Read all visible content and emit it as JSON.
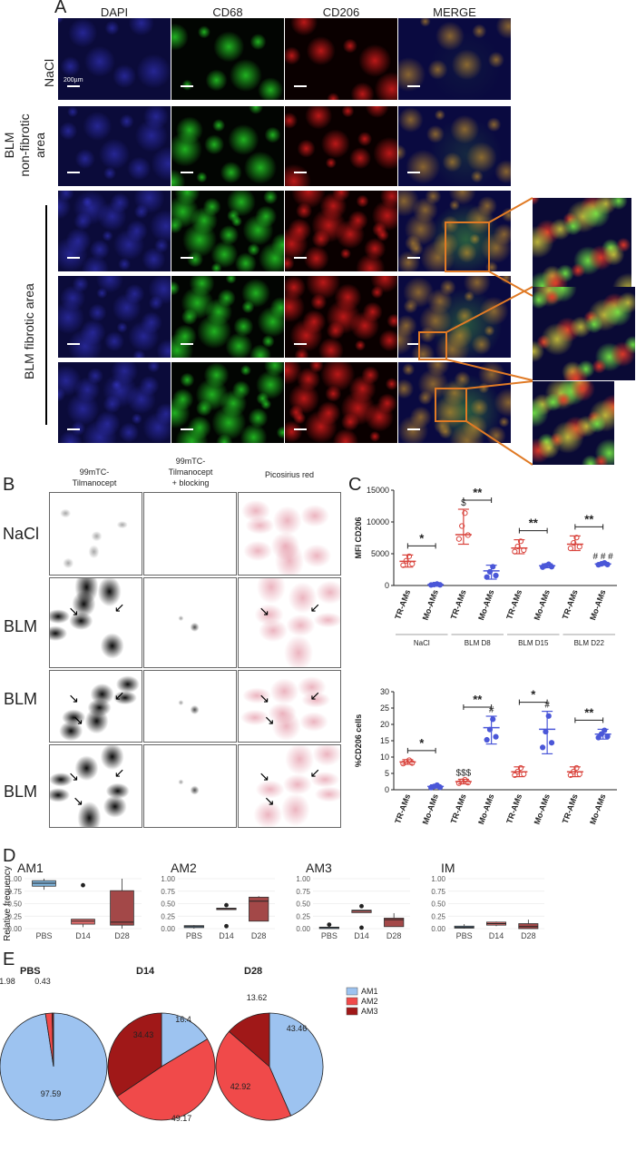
{
  "panelA": {
    "label": "A",
    "columns": [
      "DAPI",
      "CD68",
      "CD206",
      "MERGE"
    ],
    "rows": [
      "NaCl",
      "BLM\nnon-fibrotic\narea",
      "BLM fibrotic area"
    ],
    "scale_label": "200µm"
  },
  "panelB": {
    "label": "B",
    "columns": [
      "99mTC-\nTilmanocept",
      "99mTC-\nTilmanocept\n+ blocking",
      "Picosirius red"
    ],
    "rows": [
      "NaCl",
      "BLM",
      "BLM",
      "BLM"
    ]
  },
  "panelC": {
    "label": "C",
    "chart_data": [
      {
        "type": "scatter",
        "ylabel": "MFI CD206",
        "ylim": [
          0,
          15000
        ],
        "yticks": [
          "0",
          "5000",
          "10000",
          "15000"
        ],
        "categories": [
          "TR-AMs",
          "Mo-AMs",
          "TR-AMs",
          "Mo-AMs",
          "TR-AMs",
          "Mo-AMs",
          "TR-AMs",
          "Mo-AMs"
        ],
        "groups": [
          "NaCl",
          "BLM D8",
          "BLM D15",
          "BLM D22"
        ],
        "means": [
          3800,
          150,
          8000,
          2300,
          5900,
          3100,
          6500,
          3400
        ],
        "sd_low": [
          2900,
          50,
          6500,
          1000,
          5000,
          2800,
          5500,
          3200
        ],
        "sd_high": [
          4800,
          250,
          12000,
          3200,
          7200,
          3400,
          7800,
          3600
        ],
        "annotations": [
          {
            "text": "*",
            "pair": [
              0,
              1
            ]
          },
          {
            "text": "**",
            "pair": [
              2,
              3
            ]
          },
          {
            "text": "$",
            "index": 2
          },
          {
            "text": "**",
            "pair": [
              4,
              5
            ]
          },
          {
            "text": "**",
            "pair": [
              6,
              7
            ]
          },
          {
            "text": "# # #",
            "index": 7
          }
        ]
      },
      {
        "type": "scatter",
        "ylabel": "%CD206 cells",
        "ylim": [
          0,
          30
        ],
        "yticks": [
          "0",
          "5",
          "10",
          "15",
          "20",
          "25",
          "30"
        ],
        "categories": [
          "TR-AMs",
          "Mo-AMs",
          "TR-AMs",
          "Mo-AMs",
          "TR-AMs",
          "Mo-AMs",
          "TR-AMs",
          "Mo-AMs"
        ],
        "means": [
          8.5,
          1.0,
          2.5,
          19,
          5.5,
          18.5,
          5.5,
          17
        ],
        "sd_low": [
          7.8,
          0.5,
          1.8,
          14,
          4.0,
          11,
          4.0,
          15.5
        ],
        "sd_high": [
          9.2,
          1.5,
          3.2,
          22.5,
          7.0,
          24,
          7.0,
          18.5
        ],
        "annotations": [
          {
            "text": "*",
            "pair": [
              0,
              1
            ]
          },
          {
            "text": "**",
            "pair": [
              2,
              3
            ]
          },
          {
            "text": "$$$",
            "index": 2
          },
          {
            "text": "#",
            "index": 3
          },
          {
            "text": "*",
            "pair": [
              4,
              5
            ]
          },
          {
            "text": "#",
            "index": 5
          },
          {
            "text": "**",
            "pair": [
              6,
              7
            ]
          }
        ],
        "stray_label": "-\n2"
      }
    ]
  },
  "panelD": {
    "label": "D",
    "ylabel": "Relative frequency",
    "chart_data": [
      {
        "type": "box",
        "title": "AM1",
        "categories": [
          "PBS",
          "D14",
          "D28"
        ],
        "ylim": [
          0,
          1
        ],
        "boxes": [
          {
            "q1": 0.85,
            "med": 0.91,
            "q3": 0.96,
            "lo": 0.78,
            "hi": 1.0,
            "out": []
          },
          {
            "q1": 0.09,
            "med": 0.15,
            "q3": 0.19,
            "lo": 0.03,
            "hi": 0.19,
            "out": [
              0.87
            ]
          },
          {
            "q1": 0.07,
            "med": 0.13,
            "q3": 0.76,
            "lo": 0.0,
            "hi": 1.0,
            "out": []
          }
        ]
      },
      {
        "type": "box",
        "title": "AM2",
        "categories": [
          "PBS",
          "D14",
          "D28"
        ],
        "ylim": [
          0,
          1
        ],
        "boxes": [
          {
            "q1": 0.02,
            "med": 0.04,
            "q3": 0.06,
            "lo": 0.0,
            "hi": 0.07,
            "out": []
          },
          {
            "q1": 0.38,
            "med": 0.4,
            "q3": 0.41,
            "lo": 0.38,
            "hi": 0.41,
            "out": [
              0.47,
              0.05
            ]
          },
          {
            "q1": 0.15,
            "med": 0.55,
            "q3": 0.63,
            "lo": 0.15,
            "hi": 0.65,
            "out": []
          }
        ]
      },
      {
        "type": "box",
        "title": "AM3",
        "categories": [
          "PBS",
          "D14",
          "D28"
        ],
        "ylim": [
          0,
          1
        ],
        "boxes": [
          {
            "q1": 0.0,
            "med": 0.02,
            "q3": 0.03,
            "lo": 0.0,
            "hi": 0.03,
            "out": [
              0.08
            ]
          },
          {
            "q1": 0.32,
            "med": 0.35,
            "q3": 0.37,
            "lo": 0.32,
            "hi": 0.37,
            "out": [
              0.45,
              0.02
            ]
          },
          {
            "q1": 0.04,
            "med": 0.18,
            "q3": 0.21,
            "lo": 0.04,
            "hi": 0.31,
            "out": []
          }
        ]
      },
      {
        "type": "box",
        "title": "IM",
        "categories": [
          "PBS",
          "D14",
          "D28"
        ],
        "ylim": [
          0,
          1
        ],
        "boxes": [
          {
            "q1": 0.01,
            "med": 0.03,
            "q3": 0.05,
            "lo": 0.0,
            "hi": 0.09,
            "out": []
          },
          {
            "q1": 0.07,
            "med": 0.1,
            "q3": 0.13,
            "lo": 0.05,
            "hi": 0.14,
            "out": []
          },
          {
            "q1": 0.0,
            "med": 0.04,
            "q3": 0.1,
            "lo": 0.0,
            "hi": 0.18,
            "out": []
          }
        ]
      }
    ],
    "yticks": [
      "1.00",
      "0.75",
      "0.50",
      "0.25",
      "0.00"
    ]
  },
  "panelE": {
    "label": "E",
    "chart_data": [
      {
        "type": "pie",
        "title": "PBS",
        "labels": [
          "AM1",
          "AM2",
          "AM3"
        ],
        "values": [
          97.59,
          1.98,
          0.43
        ],
        "value_labels": [
          "97.59",
          "1.98",
          "0.43"
        ]
      },
      {
        "type": "pie",
        "title": "D14",
        "labels": [
          "AM1",
          "AM2",
          "AM3"
        ],
        "values": [
          16.4,
          49.17,
          34.43
        ],
        "value_labels": [
          "16.4",
          "49.17",
          "34.43"
        ]
      },
      {
        "type": "pie",
        "title": "D28",
        "labels": [
          "AM1",
          "AM2",
          "AM3"
        ],
        "values": [
          43.46,
          42.92,
          13.62
        ],
        "value_labels": [
          "43.46",
          "42.92",
          "13.62"
        ]
      }
    ],
    "legend": [
      "AM1",
      "AM2",
      "AM3"
    ],
    "colors": {
      "AM1": "#9dc3f0",
      "AM2": "#f04a4a",
      "AM3": "#a01818"
    }
  },
  "colors": {
    "box_pbs": "#82b7df",
    "box_d14": "#e36e6e",
    "box_d28": "#a34848",
    "orange": "#e07a25",
    "red": "#d9443d",
    "blue": "#4b57d8"
  }
}
